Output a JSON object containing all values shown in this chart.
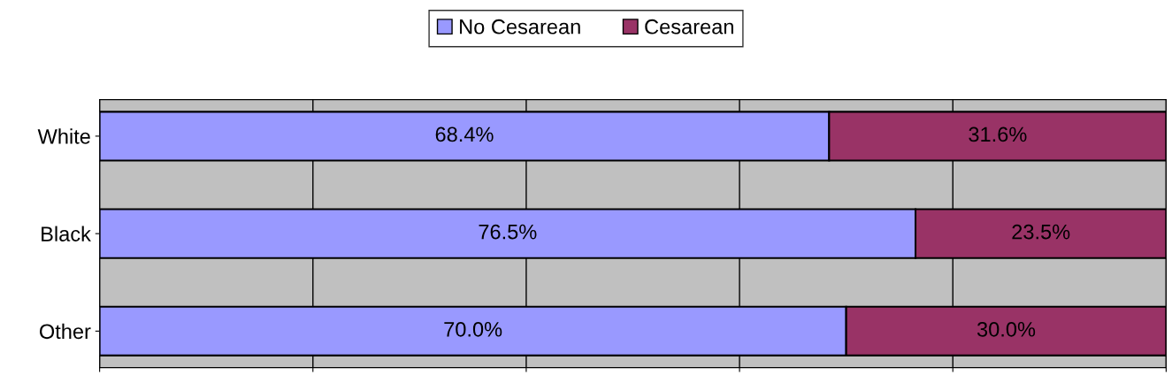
{
  "chart_data": {
    "type": "bar",
    "orientation": "horizontal",
    "stacked": true,
    "categories": [
      "White",
      "Black",
      "Other"
    ],
    "series": [
      {
        "name": "No Cesarean",
        "color": "#9999ff",
        "values": [
          68.4,
          76.5,
          70.0
        ],
        "value_labels": [
          "68.4%",
          "76.5%",
          "70.0%"
        ]
      },
      {
        "name": "Cesarean",
        "color": "#993366",
        "values": [
          31.6,
          23.5,
          30.0
        ],
        "value_labels": [
          "31.6%",
          "23.5%",
          "30.0%"
        ]
      }
    ],
    "xlim": [
      0,
      100
    ],
    "xticks": [
      {
        "value": 0,
        "label": null
      },
      {
        "value": 20,
        "label": null
      },
      {
        "value": 40,
        "label": null
      },
      {
        "value": 60,
        "label": null
      },
      {
        "value": 80,
        "label": null
      },
      {
        "value": 100,
        "label": null
      }
    ],
    "tick_labels": "y",
    "grid": "x",
    "legend": "top"
  }
}
